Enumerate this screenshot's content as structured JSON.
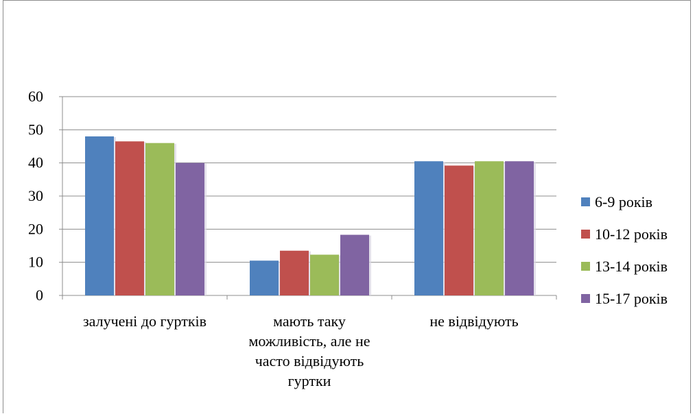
{
  "chart_data": {
    "type": "bar",
    "title": "",
    "xlabel": "",
    "ylabel": "",
    "ylim": [
      0,
      60
    ],
    "yticks": [
      0,
      10,
      20,
      30,
      40,
      50,
      60
    ],
    "grid": true,
    "legend_position": "right",
    "categories": [
      [
        "залучені до гуртків"
      ],
      [
        "мають таку",
        "можливість, але не",
        "часто відвідують",
        "гуртки"
      ],
      [
        "не відвідують"
      ]
    ],
    "series": [
      {
        "name": "6-9 років",
        "color": "#4f81bd",
        "values": [
          48,
          10.5,
          40.5
        ]
      },
      {
        "name": "10-12 років",
        "color": "#c0504d",
        "values": [
          46.5,
          13.5,
          39.2
        ]
      },
      {
        "name": "13-14 років",
        "color": "#9bbb59",
        "values": [
          46,
          12.3,
          40.5
        ]
      },
      {
        "name": "15-17 років",
        "color": "#8064a2",
        "values": [
          40,
          18.3,
          40.5
        ]
      }
    ]
  }
}
